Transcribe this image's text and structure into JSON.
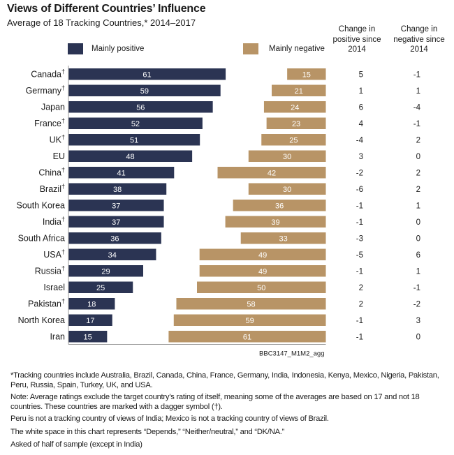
{
  "header": {
    "title": "Views of Different Countries’ Influence",
    "subtitle": "Average of 18 Tracking Countries,* 2014–2017"
  },
  "legend": {
    "positive_label": "Mainly positive",
    "negative_label": "Mainly negative"
  },
  "columns": {
    "change_positive": [
      "Change in",
      "positive since",
      "2014"
    ],
    "change_negative": [
      "Change in",
      "negative since",
      "2014"
    ]
  },
  "colors": {
    "positive": "#2b3453",
    "negative": "#b89466",
    "axis": "#9a9a9a",
    "bar_label": "#ffffff"
  },
  "chart_data": {
    "type": "bar",
    "orientation": "horizontal",
    "layout": "diverging",
    "title": "Views of Different Countries’ Influence",
    "subtitle": "Average of 18 Tracking Countries,* 2014–2017",
    "xlabel": "",
    "ylabel": "",
    "xlim": [
      0,
      100
    ],
    "grid": false,
    "legend_position": "top",
    "categories": [
      "Canada",
      "Germany",
      "Japan",
      "France",
      "UK",
      "EU",
      "China",
      "Brazil",
      "South Korea",
      "India",
      "South Africa",
      "USA",
      "Russia",
      "Israel",
      "Pakistan",
      "North Korea",
      "Iran"
    ],
    "dagger": [
      true,
      true,
      false,
      true,
      true,
      false,
      true,
      true,
      false,
      true,
      false,
      true,
      true,
      false,
      true,
      false,
      false
    ],
    "series": [
      {
        "name": "Mainly positive",
        "values": [
          61,
          59,
          56,
          52,
          51,
          48,
          41,
          38,
          37,
          37,
          36,
          34,
          29,
          25,
          18,
          17,
          15
        ]
      },
      {
        "name": "Mainly negative",
        "values": [
          15,
          21,
          24,
          23,
          25,
          30,
          42,
          30,
          36,
          39,
          33,
          49,
          49,
          50,
          58,
          59,
          61
        ]
      }
    ],
    "table_columns": [
      {
        "name": "Change in positive since 2014",
        "values": [
          5,
          1,
          6,
          4,
          -4,
          3,
          -2,
          -6,
          -1,
          -1,
          -3,
          -5,
          -1,
          2,
          2,
          -1,
          -1
        ]
      },
      {
        "name": "Change in negative since 2014",
        "values": [
          -1,
          1,
          -4,
          -1,
          2,
          0,
          2,
          2,
          1,
          0,
          0,
          6,
          1,
          -1,
          -2,
          3,
          0
        ]
      }
    ],
    "source_code": "BBC3147_M1M2_agg"
  },
  "notes": [
    "*Tracking countries include Australia, Brazil, Canada, China, France, Germany, India, Indonesia, Kenya, Mexico, Nigeria, Pakistan, Peru, Russia, Spain, Turkey, UK, and USA.",
    "Note: Average ratings exclude the target country’s rating of itself, meaning some of the averages are based on 17 and not 18 countries. These countries are marked with a dagger symbol (†).",
    "Peru is not a tracking country of views of India; Mexico is not a tracking country of views of Brazil.",
    "The white space in this chart represents “Depends,” “Neither/neutral,” and “DK/NA.”",
    "Asked of half of sample (except in India)"
  ]
}
